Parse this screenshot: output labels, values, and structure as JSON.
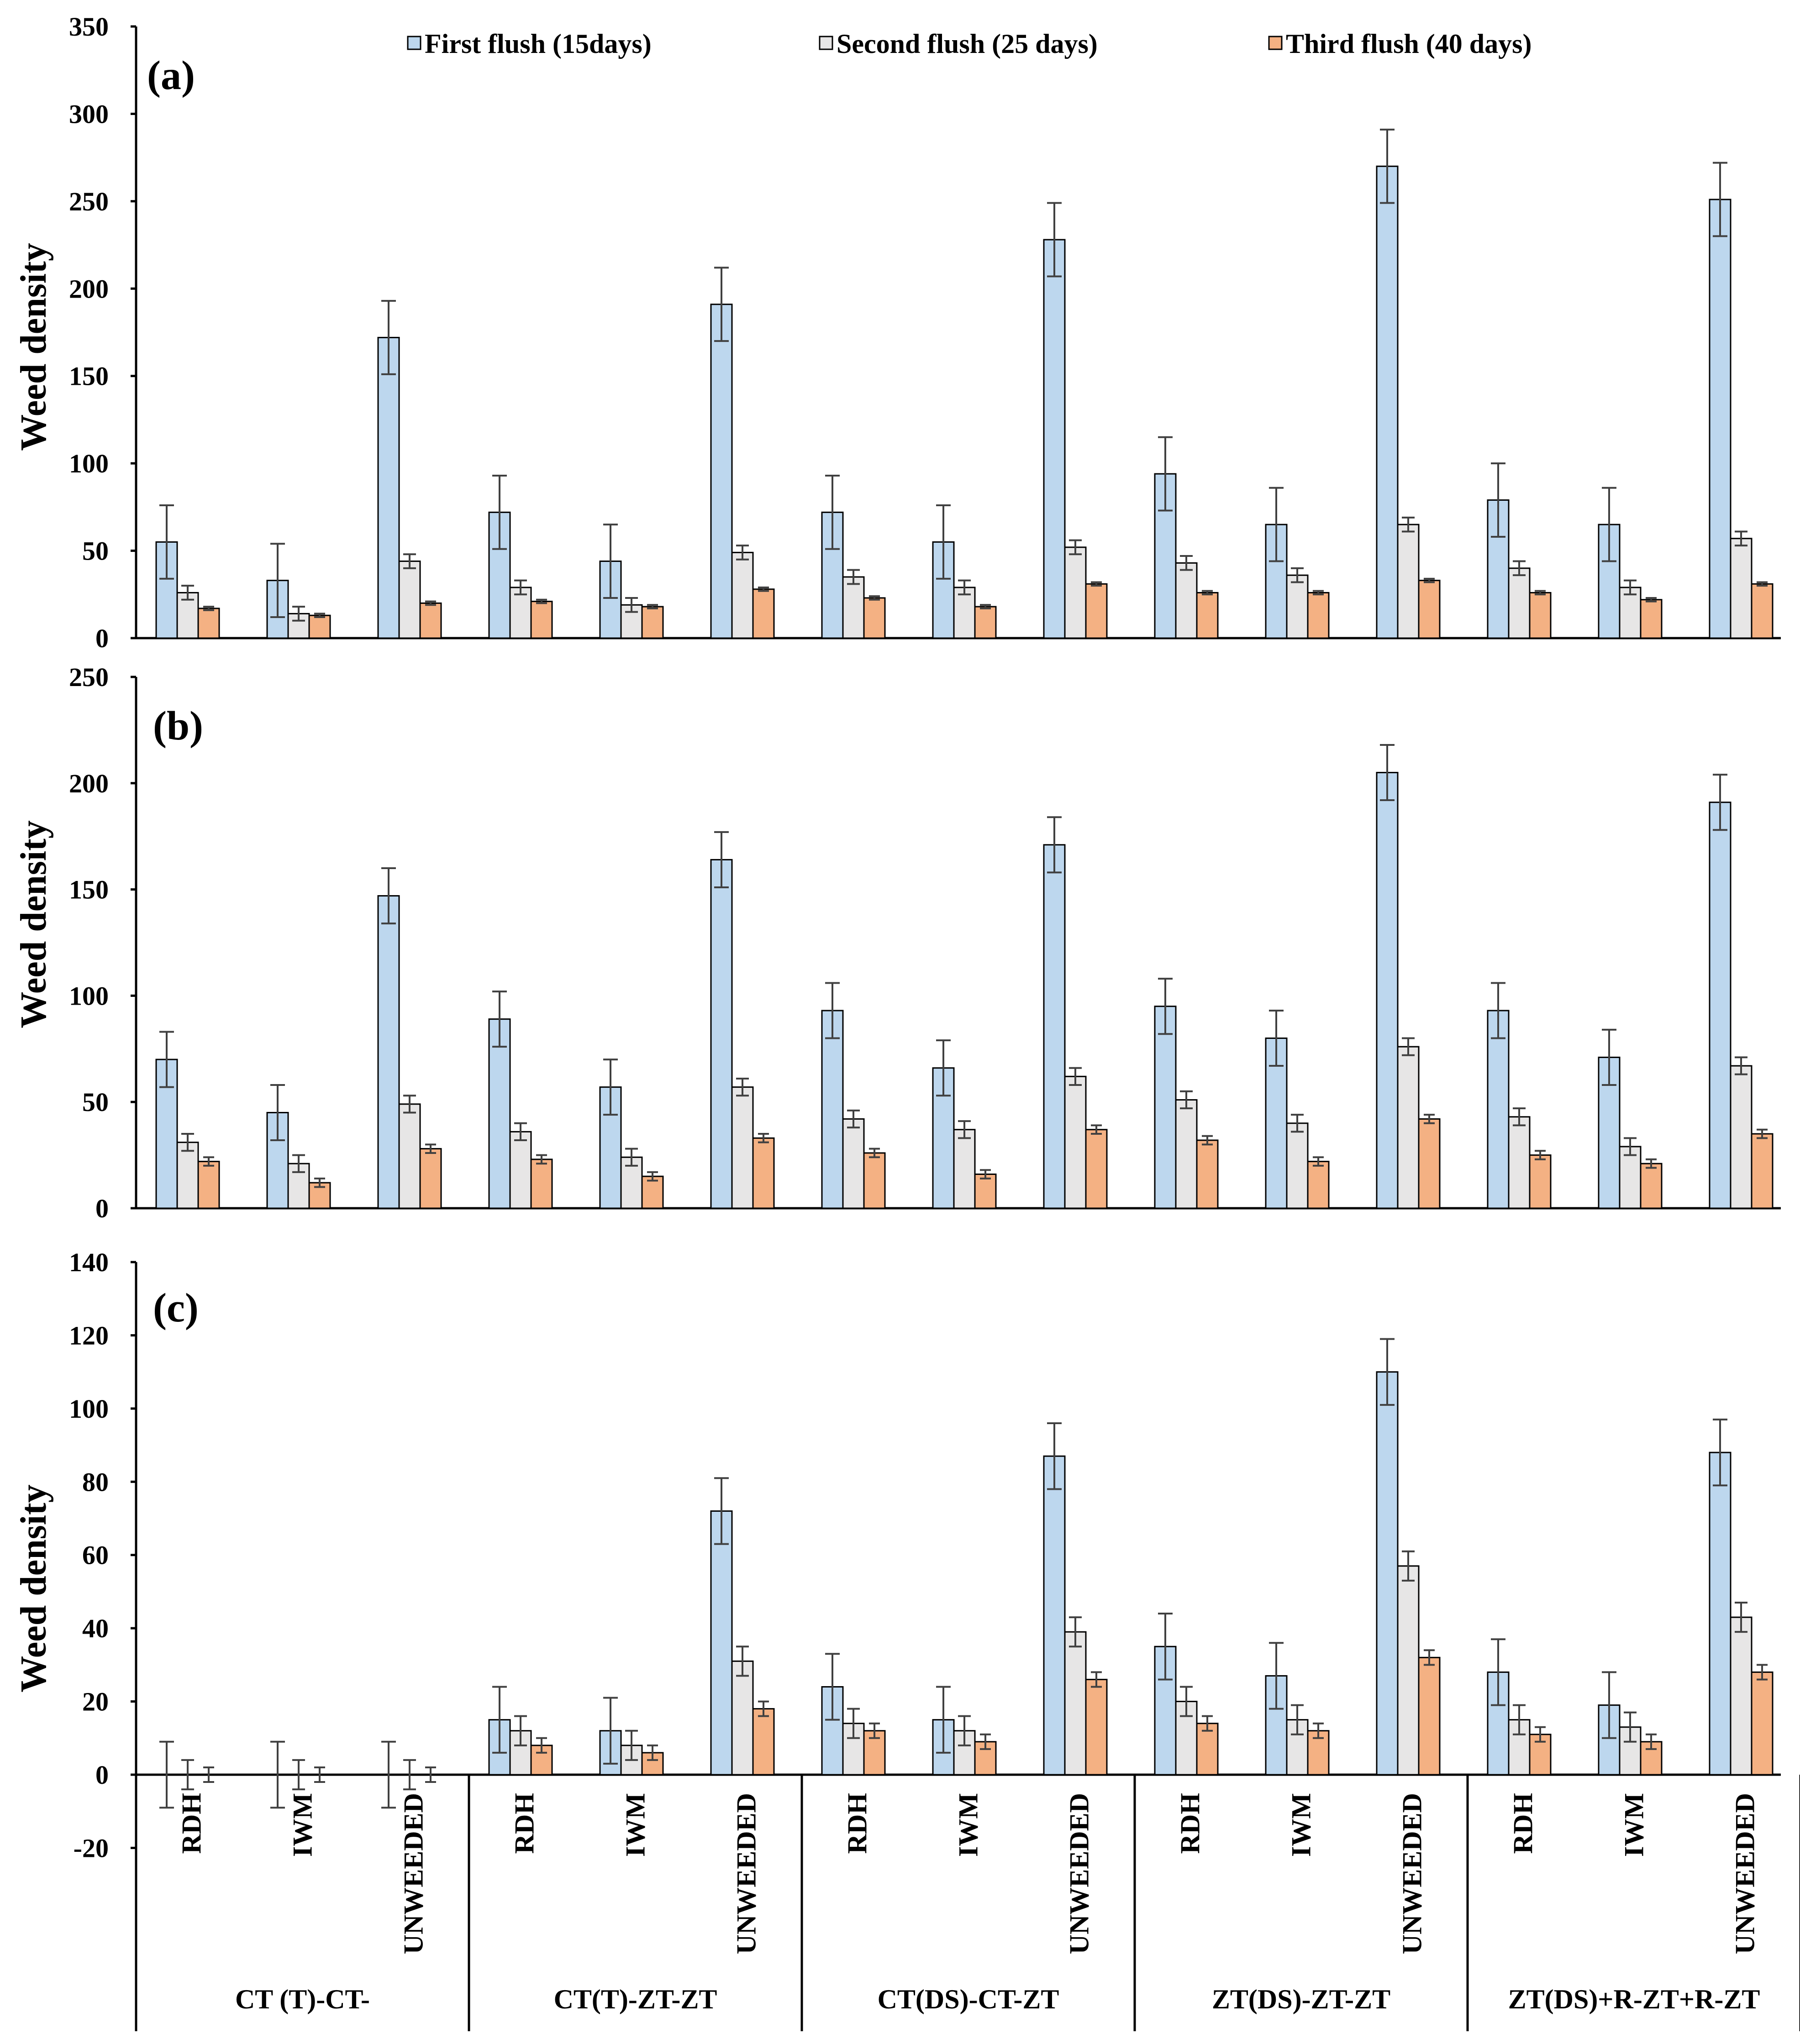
{
  "chart_data": [
    {
      "id": "a",
      "type": "bar",
      "panel_label": "(a)",
      "ylabel": "Weed density",
      "ylim": [
        0,
        350
      ],
      "yticks": [
        0,
        50,
        100,
        150,
        200,
        250,
        300,
        350
      ],
      "categories": [
        "RDH",
        "IWM",
        "UNWEEDED",
        "RDH",
        "IWM",
        "UNWEEDED",
        "RDH",
        "IWM",
        "UNWEEDED",
        "RDH",
        "IWM",
        "UNWEEDED",
        "RDH",
        "IWM",
        "UNWEEDED"
      ],
      "series": [
        {
          "name": "First flush (15days)",
          "values": [
            55,
            33,
            172,
            72,
            44,
            191,
            72,
            55,
            228,
            94,
            65,
            270,
            79,
            65,
            251
          ],
          "errors": [
            21,
            21,
            21,
            21,
            21,
            21,
            21,
            21,
            21,
            21,
            21,
            21,
            21,
            21,
            21
          ]
        },
        {
          "name": "Second flush (25 days)",
          "values": [
            26,
            14,
            44,
            29,
            19,
            49,
            35,
            29,
            52,
            43,
            36,
            65,
            40,
            29,
            57
          ],
          "errors": [
            4,
            4,
            4,
            4,
            4,
            4,
            4,
            4,
            4,
            4,
            4,
            4,
            4,
            4,
            4
          ]
        },
        {
          "name": "Third flush (40 days)",
          "values": [
            17,
            13,
            20,
            21,
            18,
            28,
            23,
            18,
            31,
            26,
            26,
            33,
            26,
            22,
            31
          ],
          "errors": [
            1,
            1,
            1,
            1,
            1,
            1,
            1,
            1,
            1,
            1,
            1,
            1,
            1,
            1,
            1
          ]
        }
      ]
    },
    {
      "id": "b",
      "type": "bar",
      "panel_label": "(b)",
      "ylabel": "Weed density",
      "ylim": [
        0,
        250
      ],
      "yticks": [
        0,
        50,
        100,
        150,
        200,
        250
      ],
      "categories": [
        "RDH",
        "IWM",
        "UNWEEDED",
        "RDH",
        "IWM",
        "UNWEEDED",
        "RDH",
        "IWM",
        "UNWEEDED",
        "RDH",
        "IWM",
        "UNWEEDED",
        "RDH",
        "IWM",
        "UNWEEDED"
      ],
      "series": [
        {
          "name": "First flush (15days)",
          "values": [
            70,
            45,
            147,
            89,
            57,
            164,
            93,
            66,
            171,
            95,
            80,
            205,
            93,
            71,
            191
          ],
          "errors": [
            13,
            13,
            13,
            13,
            13,
            13,
            13,
            13,
            13,
            13,
            13,
            13,
            13,
            13,
            13
          ]
        },
        {
          "name": "Second flush (25 days)",
          "values": [
            31,
            21,
            49,
            36,
            24,
            57,
            42,
            37,
            62,
            51,
            40,
            76,
            43,
            29,
            67
          ],
          "errors": [
            4,
            4,
            4,
            4,
            4,
            4,
            4,
            4,
            4,
            4,
            4,
            4,
            4,
            4,
            4
          ]
        },
        {
          "name": "Third flush (40 days)",
          "values": [
            22,
            12,
            28,
            23,
            15,
            33,
            26,
            16,
            37,
            32,
            22,
            42,
            25,
            21,
            35
          ],
          "errors": [
            2,
            2,
            2,
            2,
            2,
            2,
            2,
            2,
            2,
            2,
            2,
            2,
            2,
            2,
            2
          ]
        }
      ]
    },
    {
      "id": "c",
      "type": "bar",
      "panel_label": "(c)",
      "ylabel": "Weed density",
      "ylim": [
        -20,
        140
      ],
      "yticks": [
        -20,
        0,
        20,
        40,
        60,
        80,
        100,
        120,
        140
      ],
      "categories": [
        "RDH",
        "IWM",
        "UNWEEDED",
        "RDH",
        "IWM",
        "UNWEEDED",
        "RDH",
        "IWM",
        "UNWEEDED",
        "RDH",
        "IWM",
        "UNWEEDED",
        "RDH",
        "IWM",
        "UNWEEDED"
      ],
      "groups": [
        "CT (T)-CT-",
        "CT(T)-ZT-ZT",
        "CT(DS)-CT-ZT",
        "ZT(DS)-ZT-ZT",
        "ZT(DS)+R-ZT+R-ZT"
      ],
      "series": [
        {
          "name": "First flush (15days)",
          "values": [
            0,
            0,
            0,
            15,
            12,
            72,
            24,
            15,
            87,
            35,
            27,
            110,
            28,
            19,
            88
          ],
          "errors": [
            9,
            9,
            9,
            9,
            9,
            9,
            9,
            9,
            9,
            9,
            9,
            9,
            9,
            9,
            9
          ]
        },
        {
          "name": "Second flush (25 days)",
          "values": [
            0,
            0,
            0,
            12,
            8,
            31,
            14,
            12,
            39,
            20,
            15,
            57,
            15,
            13,
            43
          ],
          "errors": [
            4,
            4,
            4,
            4,
            4,
            4,
            4,
            4,
            4,
            4,
            4,
            4,
            4,
            4,
            4
          ]
        },
        {
          "name": "Third flush (40 days)",
          "values": [
            0,
            0,
            0,
            8,
            6,
            18,
            12,
            9,
            26,
            14,
            12,
            32,
            11,
            9,
            28
          ],
          "errors": [
            2,
            2,
            2,
            2,
            2,
            2,
            2,
            2,
            2,
            2,
            2,
            2,
            2,
            2,
            2
          ]
        }
      ]
    }
  ],
  "legend": [
    {
      "label": "First flush (15days)",
      "color": "#bdd7ee"
    },
    {
      "label": "Second flush (25 days)",
      "color": "#e7e6e6"
    },
    {
      "label": "Third flush (40 days)",
      "color": "#f4b183"
    }
  ]
}
